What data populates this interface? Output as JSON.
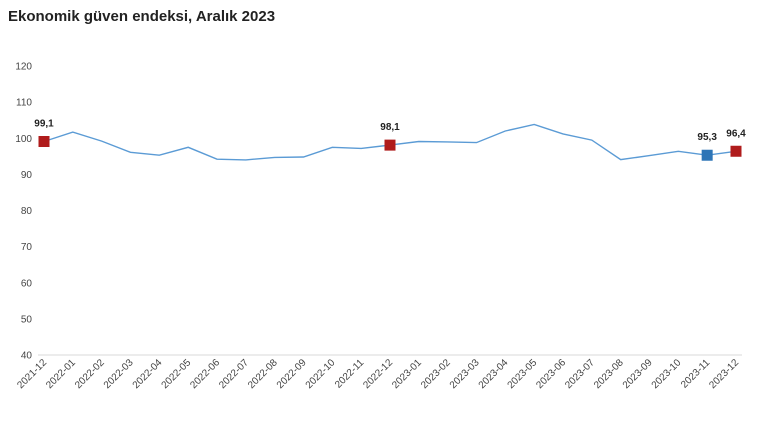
{
  "chart_data": {
    "type": "line",
    "title": "Ekonomik güven endeksi, Aralık 2023",
    "xlabel": "",
    "ylabel": "",
    "ylim": [
      40,
      120
    ],
    "yticks": [
      40,
      50,
      60,
      70,
      80,
      90,
      100,
      110,
      120
    ],
    "grid": false,
    "legend": "none",
    "categories": [
      "2021-12",
      "2022-01",
      "2022-02",
      "2022-03",
      "2022-04",
      "2022-05",
      "2022-06",
      "2022-07",
      "2022-08",
      "2022-09",
      "2022-10",
      "2022-11",
      "2022-12",
      "2023-01",
      "2023-02",
      "2023-03",
      "2023-04",
      "2023-05",
      "2023-06",
      "2023-07",
      "2023-08",
      "2023-09",
      "2023-10",
      "2023-11",
      "2023-12"
    ],
    "series": [
      {
        "values": [
          99.1,
          101.7,
          99.2,
          96.1,
          95.3,
          97.5,
          94.2,
          94.0,
          94.7,
          94.8,
          97.5,
          97.2,
          98.1,
          99.1,
          99.0,
          98.8,
          102.0,
          103.8,
          101.2,
          99.5,
          94.1,
          95.2,
          96.4,
          95.3,
          96.4
        ],
        "color": "#5b9bd5"
      }
    ],
    "highlights": [
      {
        "index": 0,
        "label": "99,1",
        "color": "#b01c1c"
      },
      {
        "index": 12,
        "label": "98,1",
        "color": "#b01c1c"
      },
      {
        "index": 23,
        "label": "95,3",
        "color": "#2e75b6"
      },
      {
        "index": 24,
        "label": "96,4",
        "color": "#b01c1c"
      }
    ]
  }
}
